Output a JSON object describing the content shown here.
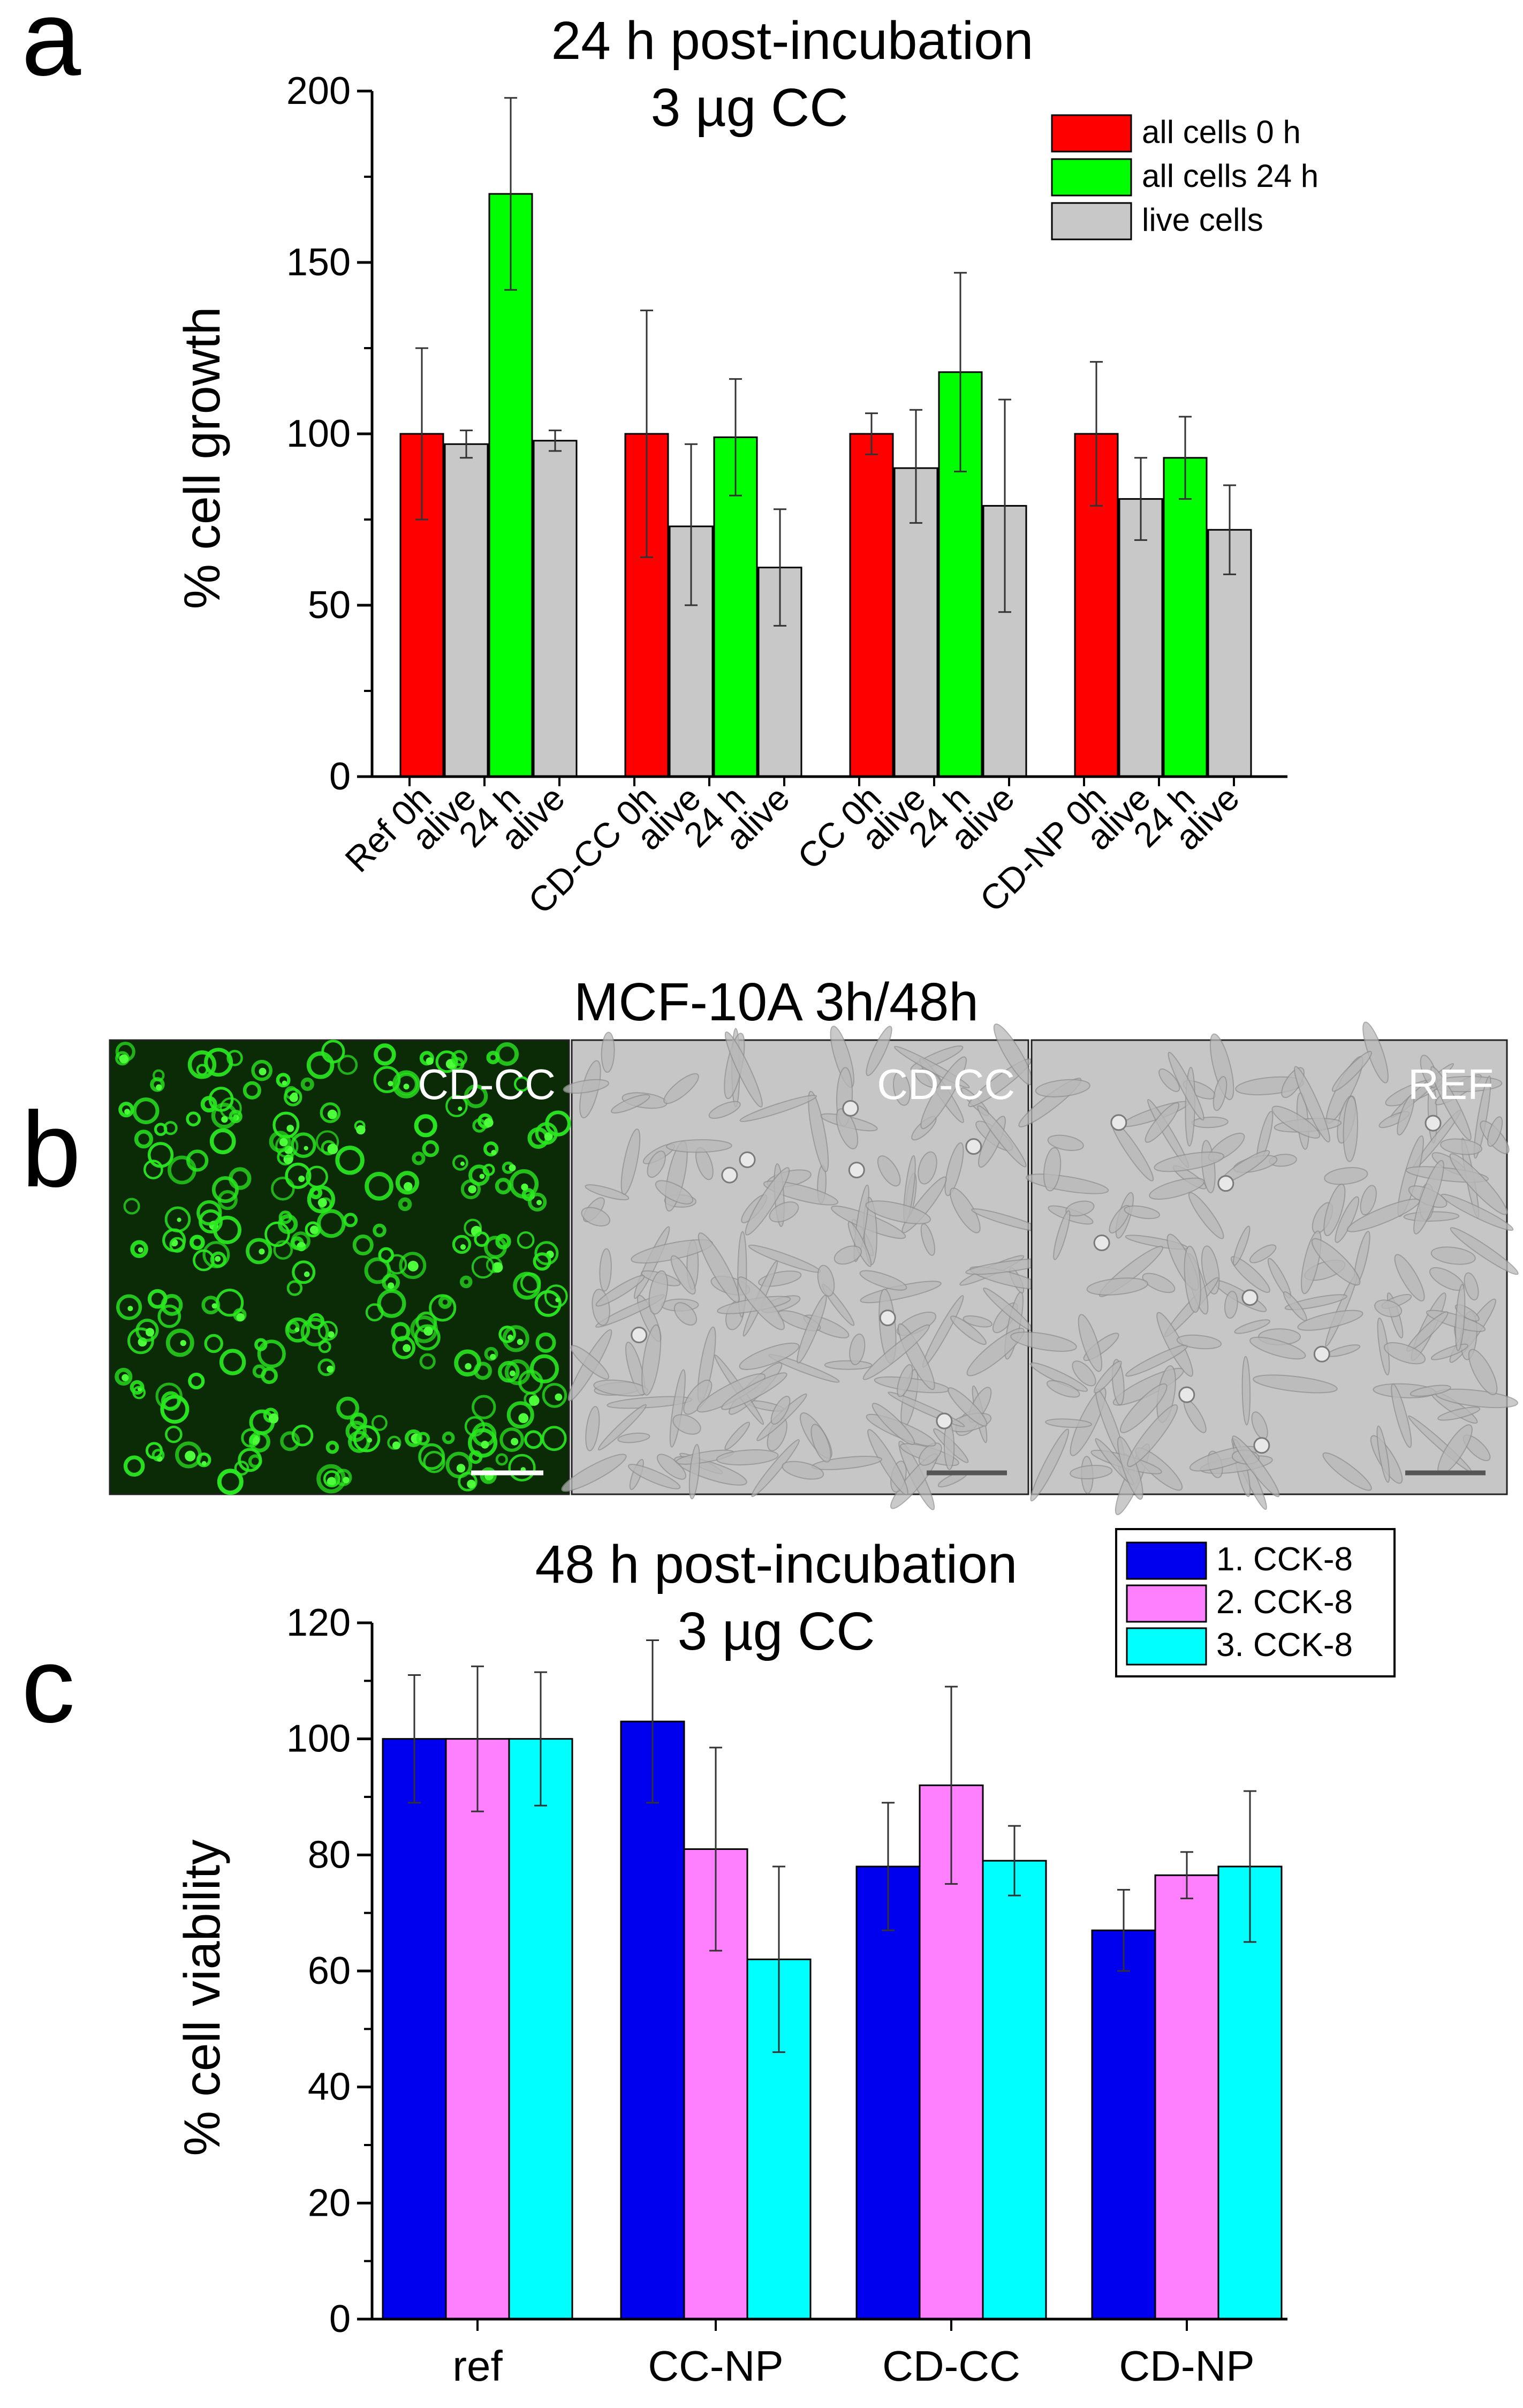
{
  "panel_letters": {
    "a": "a",
    "b": "b",
    "c": "c"
  },
  "colors": {
    "red": "#ff0000",
    "green": "#00ff00",
    "gray": "#c8c8c8",
    "blue": "#0000ee",
    "pink": "#ff80ff",
    "cyan": "#00ffff",
    "micro_green_bg": "#0b2a06",
    "micro_gray_bg": "#c6c6c6"
  },
  "panel_b": {
    "title": "MCF-10A 3h/48h",
    "images": [
      {
        "label": "CD-CC",
        "kind": "fluorescence"
      },
      {
        "label": "CD-CC",
        "kind": "phase-contrast"
      },
      {
        "label": "REF",
        "kind": "phase-contrast"
      }
    ]
  },
  "chart_data": [
    {
      "id": "panel-a",
      "type": "bar",
      "title": "24 h post-incubation",
      "subtitle": "3 µg CC",
      "xlabel": "",
      "ylabel": "% cell growth",
      "ylim": [
        0,
        200
      ],
      "yticks": [
        0,
        50,
        100,
        150,
        200
      ],
      "legend_position": "top-right",
      "legend": [
        {
          "label": "all cells 0 h",
          "color": "#ff0000"
        },
        {
          "label": "all cells 24 h",
          "color": "#00ff00"
        },
        {
          "label": "live cells",
          "color": "#c8c8c8"
        }
      ],
      "groups": [
        {
          "name": "Ref",
          "bars": [
            {
              "label": "Ref 0h",
              "value": 100,
              "err_low": 75,
              "err_high": 125,
              "color": "#ff0000"
            },
            {
              "label": "alive",
              "value": 97,
              "err_low": 93,
              "err_high": 101,
              "color": "#c8c8c8"
            },
            {
              "label": "24 h",
              "value": 170,
              "err_low": 142,
              "err_high": 198,
              "color": "#00ff00"
            },
            {
              "label": "alive",
              "value": 98,
              "err_low": 95,
              "err_high": 101,
              "color": "#c8c8c8"
            }
          ]
        },
        {
          "name": "CD-CC",
          "bars": [
            {
              "label": "CD-CC 0h",
              "value": 100,
              "err_low": 64,
              "err_high": 136,
              "color": "#ff0000"
            },
            {
              "label": "alive",
              "value": 73,
              "err_low": 50,
              "err_high": 97,
              "color": "#c8c8c8"
            },
            {
              "label": "24 h",
              "value": 99,
              "err_low": 82,
              "err_high": 116,
              "color": "#00ff00"
            },
            {
              "label": "alive",
              "value": 61,
              "err_low": 44,
              "err_high": 78,
              "color": "#c8c8c8"
            }
          ]
        },
        {
          "name": "CC",
          "bars": [
            {
              "label": "CC 0h",
              "value": 100,
              "err_low": 94,
              "err_high": 106,
              "color": "#ff0000"
            },
            {
              "label": "alive",
              "value": 90,
              "err_low": 74,
              "err_high": 107,
              "color": "#c8c8c8"
            },
            {
              "label": "24 h",
              "value": 118,
              "err_low": 89,
              "err_high": 147,
              "color": "#00ff00"
            },
            {
              "label": "alive",
              "value": 79,
              "err_low": 48,
              "err_high": 110,
              "color": "#c8c8c8"
            }
          ]
        },
        {
          "name": "CD-NP",
          "bars": [
            {
              "label": "CD-NP 0h",
              "value": 100,
              "err_low": 79,
              "err_high": 121,
              "color": "#ff0000"
            },
            {
              "label": "alive",
              "value": 81,
              "err_low": 69,
              "err_high": 93,
              "color": "#c8c8c8"
            },
            {
              "label": "24 h",
              "value": 93,
              "err_low": 81,
              "err_high": 105,
              "color": "#00ff00"
            },
            {
              "label": "alive",
              "value": 72,
              "err_low": 59,
              "err_high": 85,
              "color": "#c8c8c8"
            }
          ]
        }
      ]
    },
    {
      "id": "panel-c",
      "type": "bar",
      "title": "48 h post-incubation",
      "subtitle": "3 µg CC",
      "xlabel": "",
      "ylabel": "% cell viability",
      "ylim": [
        0,
        120
      ],
      "yticks": [
        0,
        20,
        40,
        60,
        80,
        100,
        120
      ],
      "legend_position": "top-right",
      "categories": [
        "ref",
        "CC-NP",
        "CD-CC",
        "CD-NP"
      ],
      "series": [
        {
          "name": "1. CCK-8",
          "color": "#0000ee",
          "values": [
            100,
            103,
            78,
            67
          ],
          "errors": [
            11,
            14,
            11,
            7
          ]
        },
        {
          "name": "2. CCK-8",
          "color": "#ff80ff",
          "values": [
            100,
            81,
            92,
            76.5
          ],
          "errors": [
            12.5,
            17.5,
            17,
            4
          ]
        },
        {
          "name": "3. CCK-8",
          "color": "#00ffff",
          "values": [
            100,
            62,
            79,
            78
          ],
          "errors": [
            11.5,
            16,
            6,
            13
          ]
        }
      ]
    }
  ]
}
